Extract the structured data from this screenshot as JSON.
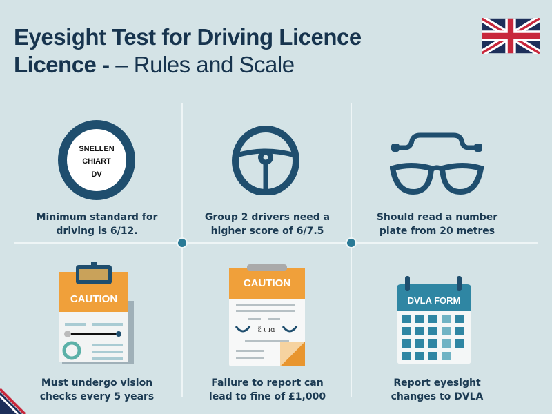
{
  "header": {
    "title_line1": "Eyesight Test for Driving Licence",
    "title_line2_bold": "Licence - ",
    "title_line2_rest": "– Rules and Scale"
  },
  "flag_icon": "union-jack-flag",
  "colors": {
    "background": "#d4e3e6",
    "navy": "#1b3a52",
    "icon_blue": "#1f4e6e",
    "orange": "#f0a03a",
    "teal": "#2f8aa6"
  },
  "panels": [
    {
      "icon": "snellen-chart-icon",
      "icon_text": [
        "SNELLEN",
        "CHIART",
        "DV"
      ],
      "caption": [
        "Minimum standard for",
        "driving is 6/12."
      ]
    },
    {
      "icon": "steering-wheel-icon",
      "caption": [
        "Group 2 drivers need a",
        "higher score of 6/7.5"
      ]
    },
    {
      "icon": "glasses-icon",
      "caption": [
        "Should read a number",
        "plate from 20 metres"
      ]
    },
    {
      "icon": "caution-clipboard-icon",
      "icon_text": [
        "CAUTION"
      ],
      "caption": [
        "Must undergo vision",
        "checks every 5 years"
      ]
    },
    {
      "icon": "caution-document-icon",
      "icon_text": [
        "CAUTION"
      ],
      "caption": [
        "Failure to report can",
        "lead to fine of £1,000"
      ]
    },
    {
      "icon": "dvla-calendar-icon",
      "icon_text": [
        "DVLA FORM"
      ],
      "caption": [
        "Report eyesight",
        "changes to DVLA"
      ]
    }
  ]
}
